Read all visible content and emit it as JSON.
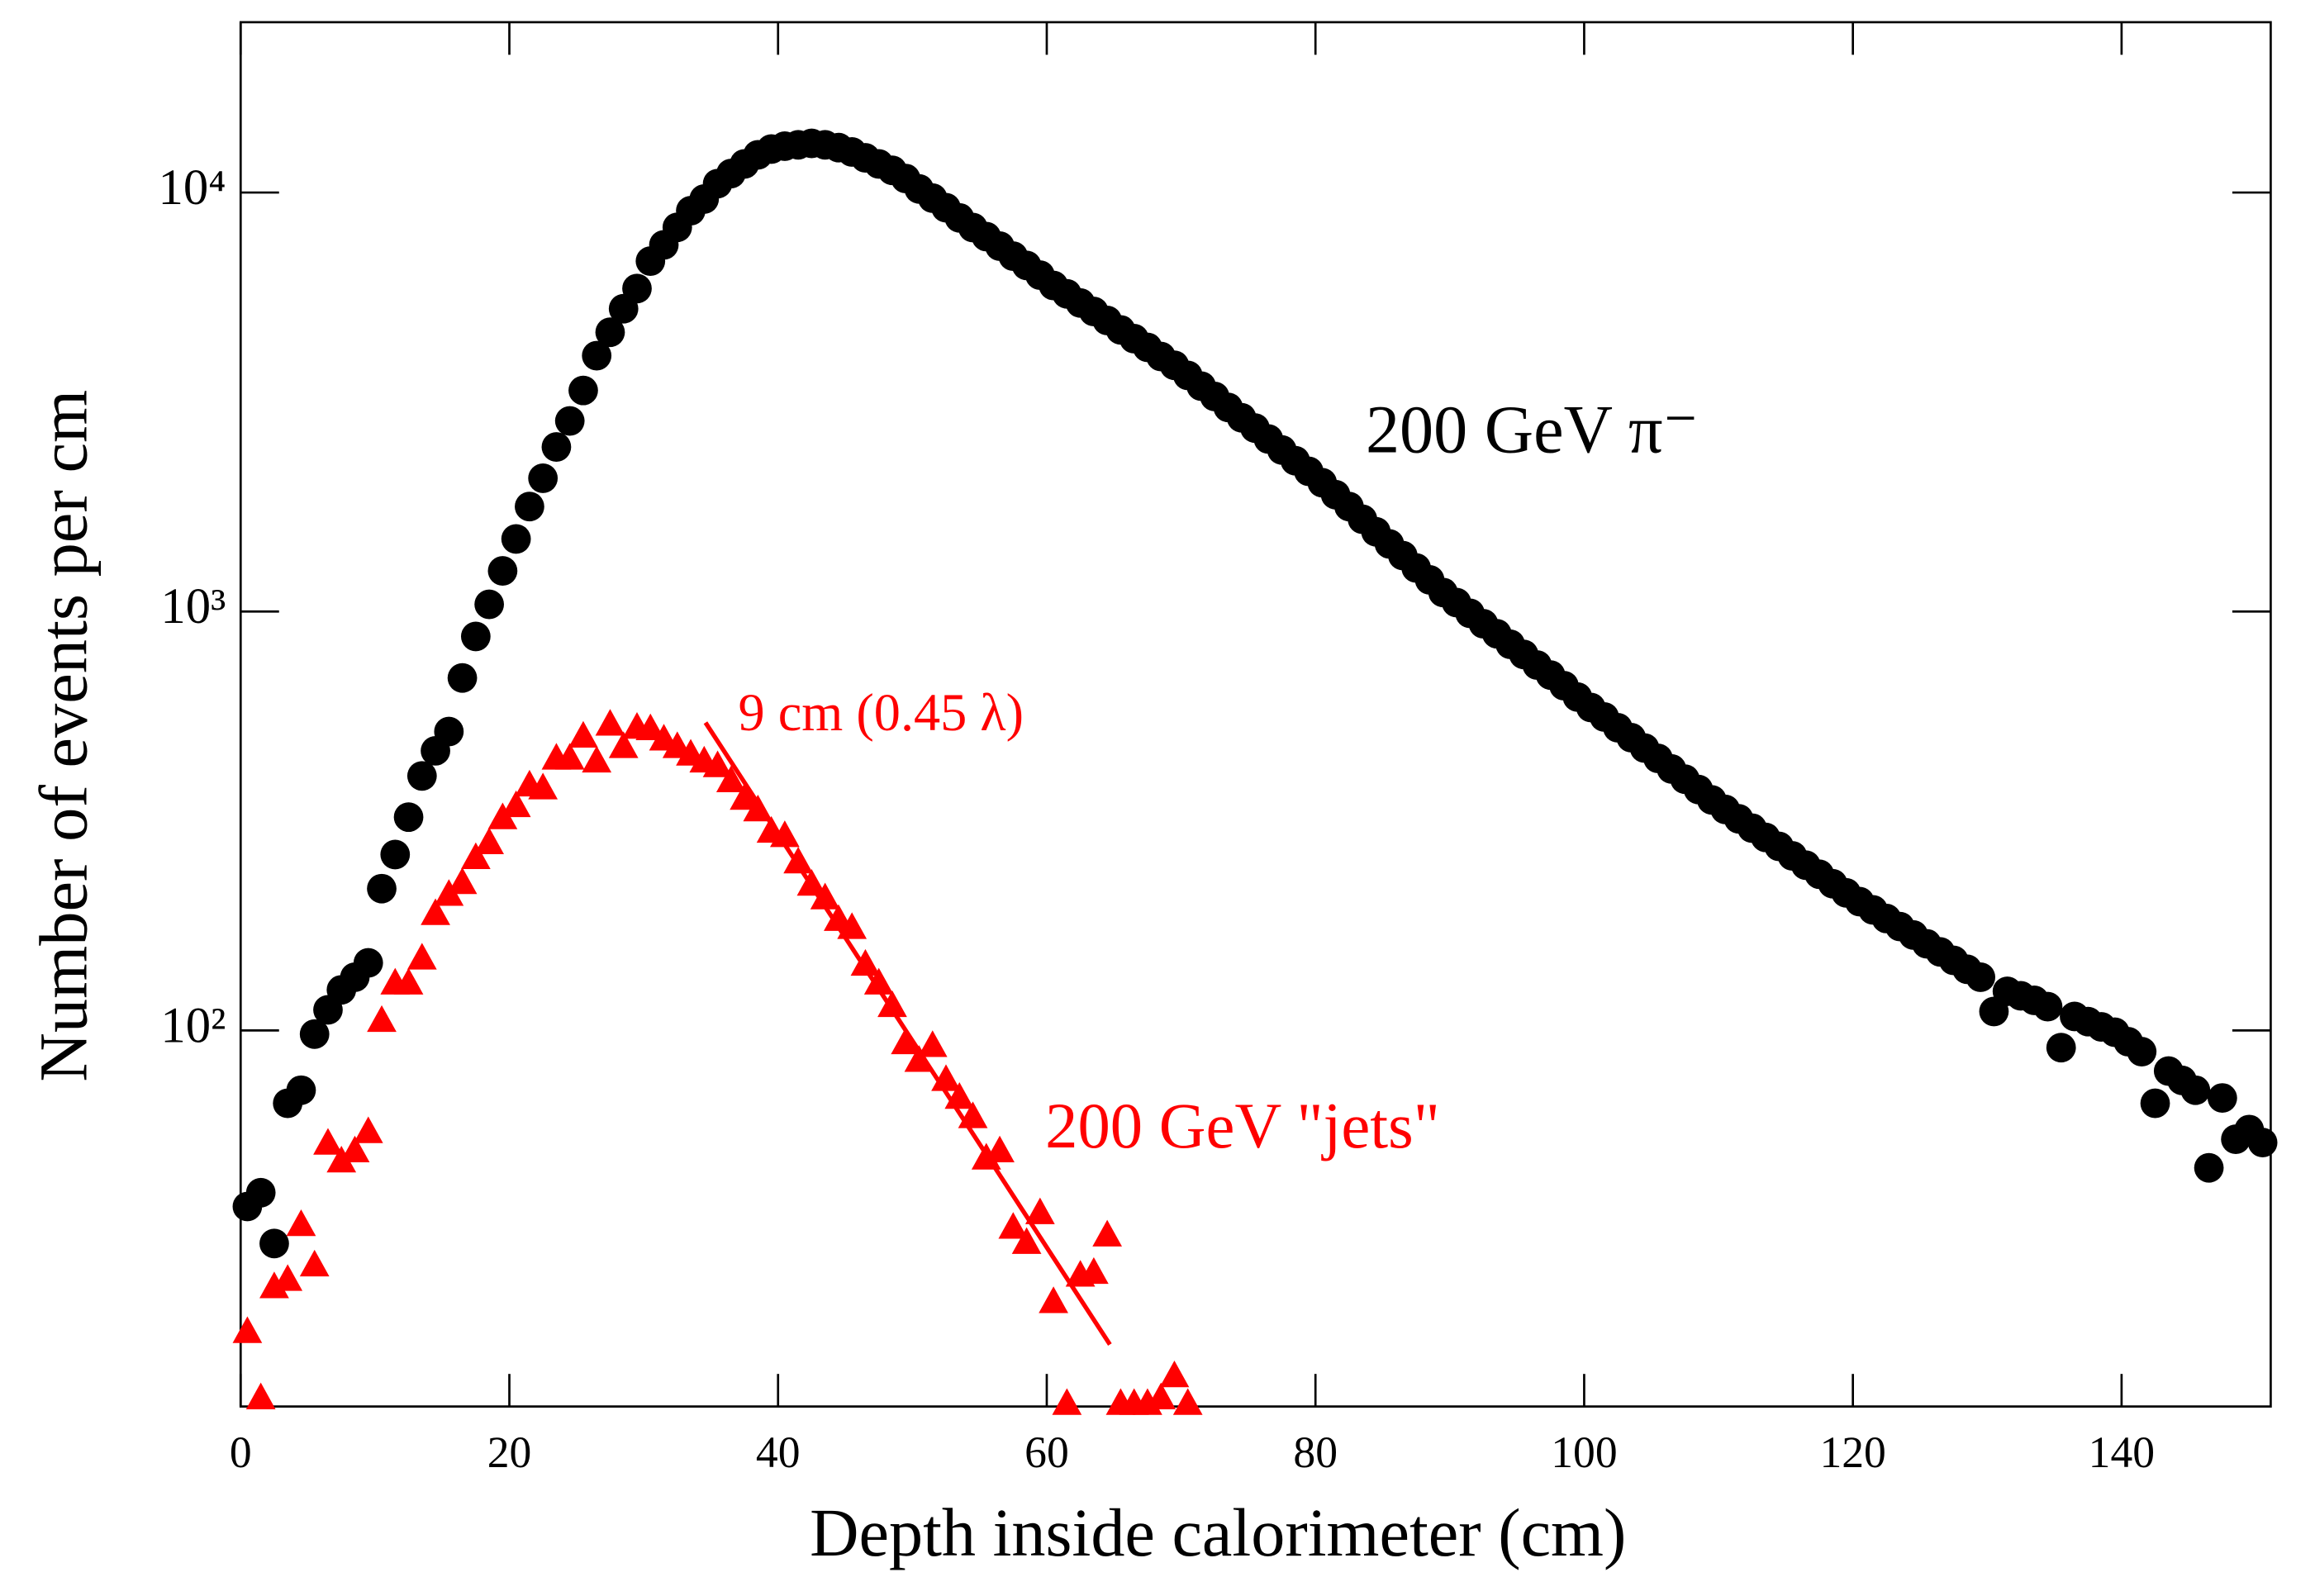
{
  "chart_data": {
    "type": "scatter",
    "xlabel": "Depth inside calorimeter (cm)",
    "ylabel": "Number of events per cm",
    "xlim": [
      0,
      151.1
    ],
    "ylim": [
      12.66,
      25500
    ],
    "log_y": true,
    "xticks": [
      0,
      20,
      40,
      60,
      80,
      100,
      120,
      140
    ],
    "yticks": [
      {
        "value": 100,
        "label": "10²"
      },
      {
        "value": 1000,
        "label": "10³"
      },
      {
        "value": 10000,
        "label": "10⁴"
      }
    ],
    "series": [
      {
        "name": "200 GeV π⁻",
        "color": "#000000",
        "marker": "circle",
        "x": [
          0.5,
          1.5,
          2.5,
          3.5,
          4.5,
          5.5,
          6.5,
          7.5,
          8.5,
          9.5,
          10.5,
          11.5,
          12.5,
          13.5,
          14.5,
          15.5,
          16.5,
          17.5,
          18.5,
          19.5,
          20.5,
          21.5,
          22.5,
          23.5,
          24.5,
          25.5,
          26.5,
          27.5,
          28.5,
          29.5,
          30.5,
          31.5,
          32.5,
          33.5,
          34.5,
          35.5,
          36.5,
          37.5,
          38.5,
          39.5,
          40.5,
          41.5,
          42.5,
          43.5,
          44.5,
          45.5,
          46.5,
          47.5,
          48.5,
          49.5,
          50.5,
          51.5,
          52.5,
          53.5,
          54.5,
          55.5,
          56.5,
          57.5,
          58.5,
          59.5,
          60.5,
          61.5,
          62.5,
          63.5,
          64.5,
          65.5,
          66.5,
          67.5,
          68.5,
          69.5,
          70.5,
          71.5,
          72.5,
          73.5,
          74.5,
          75.5,
          76.5,
          77.5,
          78.5,
          79.5,
          80.5,
          81.5,
          82.5,
          83.5,
          84.5,
          85.5,
          86.5,
          87.5,
          88.5,
          89.5,
          90.5,
          91.5,
          92.5,
          93.5,
          94.5,
          95.5,
          96.5,
          97.5,
          98.5,
          99.5,
          100.5,
          101.5,
          102.5,
          103.5,
          104.5,
          105.5,
          106.5,
          107.5,
          108.5,
          109.5,
          110.5,
          111.5,
          112.5,
          113.5,
          114.5,
          115.5,
          116.5,
          117.5,
          118.5,
          119.5,
          120.5,
          121.5,
          122.5,
          123.5,
          124.5,
          125.5,
          126.5,
          127.5,
          128.5,
          129.5,
          130.5,
          131.5,
          132.5,
          133.5,
          134.5,
          135.5,
          136.5,
          137.5,
          138.5,
          139.5,
          140.5,
          141.5,
          142.5,
          143.5,
          144.5,
          145.5,
          146.5,
          147.5,
          148.5,
          149.5,
          150.5
        ],
        "values": [
          38,
          41,
          31,
          67,
          72,
          98,
          112,
          125,
          134,
          145,
          218,
          263,
          323,
          405,
          465,
          517,
          694,
          872,
          1040,
          1250,
          1490,
          1780,
          2080,
          2470,
          2850,
          3370,
          4080,
          4640,
          5280,
          5900,
          6860,
          7500,
          8260,
          9050,
          9650,
          10500,
          11100,
          11700,
          12300,
          12700,
          12900,
          13000,
          13100,
          13000,
          12800,
          12500,
          12100,
          11700,
          11300,
          10800,
          10200,
          9700,
          9200,
          8700,
          8250,
          7850,
          7450,
          7050,
          6700,
          6350,
          6000,
          5730,
          5450,
          5200,
          4950,
          4700,
          4480,
          4270,
          4060,
          3870,
          3660,
          3450,
          3260,
          3070,
          2900,
          2740,
          2580,
          2430,
          2290,
          2160,
          2030,
          1900,
          1780,
          1660,
          1550,
          1450,
          1360,
          1270,
          1190,
          1110,
          1050,
          990,
          935,
          885,
          835,
          790,
          745,
          705,
          665,
          625,
          590,
          560,
          528,
          500,
          472,
          446,
          421,
          398,
          376,
          355,
          337,
          320,
          304,
          289,
          275,
          261,
          248,
          236,
          224,
          213,
          203,
          194,
          185,
          177,
          169,
          161,
          154,
          147,
          140,
          134,
          111,
          124,
          121,
          118,
          114,
          91,
          108,
          105,
          102,
          99,
          94,
          89,
          67,
          80,
          76,
          72,
          47,
          69,
          55,
          58,
          54
        ]
      },
      {
        "name": "200 GeV \"jets\"",
        "color": "#ff0000",
        "marker": "triangle",
        "x": [
          0.5,
          1.5,
          2.5,
          3.5,
          4.5,
          5.5,
          6.5,
          7.5,
          8.5,
          9.5,
          10.5,
          11.5,
          12.5,
          13.5,
          14.5,
          15.5,
          16.5,
          17.5,
          18.5,
          19.5,
          20.5,
          21.5,
          22.5,
          23.5,
          24.5,
          25.5,
          26.5,
          27.5,
          28.5,
          29.5,
          30.5,
          31.5,
          32.5,
          33.5,
          34.5,
          35.5,
          36.5,
          37.5,
          38.5,
          39.5,
          40.5,
          41.5,
          42.5,
          43.5,
          44.5,
          45.5,
          46.5,
          47.5,
          48.5,
          49.5,
          50.5,
          51.5,
          52.5,
          53.5,
          54.5,
          55.5,
          56.5,
          57.5,
          58.5,
          59.5,
          60.5,
          61.5,
          62.5,
          63.5,
          64.5,
          65.5,
          66.5,
          67.5,
          68.5,
          69.5,
          70.5
        ],
        "values": [
          19.0,
          13.2,
          24.3,
          25.3,
          34.2,
          27.4,
          53.5,
          48.5,
          51.3,
          57.0,
          105,
          129,
          129,
          148,
          189,
          210,
          224,
          257,
          279,
          320,
          342,
          383,
          377,
          444,
          444,
          501,
          437,
          535,
          473,
          526,
          522,
          493,
          473,
          454,
          437,
          426,
          392,
          356,
          334,
          297,
          290,
          251,
          222,
          206,
          183,
          175,
          143,
          129,
          114,
          92.9,
          84.3,
          91.5,
          75.9,
          68.8,
          61.9,
          49.3,
          51.3,
          33.7,
          31.0,
          36.5,
          22.4,
          12.8,
          25.9,
          26.3,
          32.3,
          12.8,
          12.8,
          12.8,
          13.2,
          14.9,
          12.8
        ]
      }
    ],
    "fit_line": {
      "label": "9 cm (0.45 λ)",
      "color": "#ff0000",
      "x": [
        34.6,
        64.7
      ],
      "values": [
        543,
        17.8
      ]
    }
  }
}
